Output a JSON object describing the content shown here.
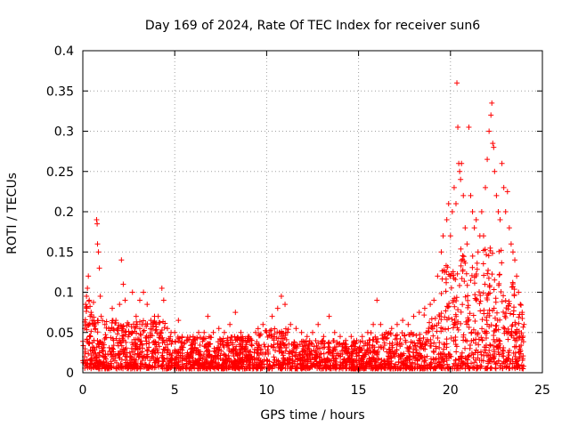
{
  "chart_data": {
    "type": "scatter",
    "title": "Day 169 of 2024, Rate Of TEC Index for receiver sun6",
    "xlabel": "GPS time / hours",
    "ylabel": "ROTI / TECUs",
    "xlim": [
      0,
      25
    ],
    "ylim": [
      0,
      0.4
    ],
    "xticks": [
      {
        "value": 0,
        "label": "0"
      },
      {
        "value": 5,
        "label": "5"
      },
      {
        "value": 10,
        "label": "10"
      },
      {
        "value": 15,
        "label": "15"
      },
      {
        "value": 20,
        "label": "20"
      },
      {
        "value": 25,
        "label": "25"
      }
    ],
    "yticks": [
      {
        "value": 0,
        "label": "0"
      },
      {
        "value": 0.05,
        "label": "0.05"
      },
      {
        "value": 0.1,
        "label": "0.1"
      },
      {
        "value": 0.15,
        "label": "0.15"
      },
      {
        "value": 0.2,
        "label": "0.2"
      },
      {
        "value": 0.25,
        "label": "0.25"
      },
      {
        "value": 0.3,
        "label": "0.3"
      },
      {
        "value": 0.35,
        "label": "0.35"
      },
      {
        "value": 0.4,
        "label": "0.4"
      }
    ],
    "grid": true,
    "marker": "plus",
    "color": "#ff0000",
    "series": [
      {
        "points": [
          [
            0.1,
            0.055
          ],
          [
            0.15,
            0.085
          ],
          [
            0.2,
            0.095
          ],
          [
            0.25,
            0.105
          ],
          [
            0.3,
            0.12
          ],
          [
            0.35,
            0.09
          ],
          [
            0.4,
            0.07
          ],
          [
            0.45,
            0.075
          ],
          [
            0.5,
            0.065
          ],
          [
            0.6,
            0.06
          ],
          [
            0.75,
            0.19
          ],
          [
            0.78,
            0.185
          ],
          [
            0.8,
            0.16
          ],
          [
            0.85,
            0.15
          ],
          [
            0.9,
            0.13
          ],
          [
            0.95,
            0.095
          ],
          [
            1.0,
            0.07
          ],
          [
            1.2,
            0.06
          ],
          [
            1.4,
            0.055
          ],
          [
            1.6,
            0.08
          ],
          [
            1.8,
            0.065
          ],
          [
            2.0,
            0.085
          ],
          [
            2.1,
            0.14
          ],
          [
            2.2,
            0.11
          ],
          [
            2.3,
            0.09
          ],
          [
            2.5,
            0.06
          ],
          [
            2.7,
            0.1
          ],
          [
            2.9,
            0.07
          ],
          [
            3.1,
            0.09
          ],
          [
            3.3,
            0.1
          ],
          [
            3.5,
            0.085
          ],
          [
            3.7,
            0.065
          ],
          [
            3.9,
            0.07
          ],
          [
            4.1,
            0.07
          ],
          [
            4.3,
            0.105
          ],
          [
            4.4,
            0.09
          ],
          [
            4.6,
            0.055
          ],
          [
            4.8,
            0.05
          ],
          [
            5.0,
            0.05
          ],
          [
            5.2,
            0.065
          ],
          [
            5.4,
            0.045
          ],
          [
            5.7,
            0.04
          ],
          [
            6.0,
            0.045
          ],
          [
            6.3,
            0.05
          ],
          [
            6.6,
            0.05
          ],
          [
            6.8,
            0.07
          ],
          [
            7.1,
            0.05
          ],
          [
            7.4,
            0.055
          ],
          [
            7.7,
            0.05
          ],
          [
            8.0,
            0.06
          ],
          [
            8.3,
            0.075
          ],
          [
            8.6,
            0.05
          ],
          [
            9.0,
            0.045
          ],
          [
            9.4,
            0.05
          ],
          [
            9.8,
            0.06
          ],
          [
            10.0,
            0.05
          ],
          [
            10.3,
            0.07
          ],
          [
            10.6,
            0.08
          ],
          [
            10.8,
            0.095
          ],
          [
            11.0,
            0.085
          ],
          [
            11.3,
            0.06
          ],
          [
            11.6,
            0.055
          ],
          [
            11.9,
            0.05
          ],
          [
            12.2,
            0.045
          ],
          [
            12.5,
            0.05
          ],
          [
            12.8,
            0.06
          ],
          [
            13.1,
            0.045
          ],
          [
            13.4,
            0.07
          ],
          [
            13.7,
            0.05
          ],
          [
            14.0,
            0.045
          ],
          [
            14.3,
            0.04
          ],
          [
            14.6,
            0.045
          ],
          [
            14.9,
            0.04
          ],
          [
            15.2,
            0.045
          ],
          [
            15.5,
            0.05
          ],
          [
            15.8,
            0.06
          ],
          [
            16.0,
            0.09
          ],
          [
            16.2,
            0.06
          ],
          [
            16.5,
            0.05
          ],
          [
            16.8,
            0.055
          ],
          [
            17.1,
            0.06
          ],
          [
            17.4,
            0.065
          ],
          [
            17.7,
            0.06
          ],
          [
            18.0,
            0.07
          ],
          [
            18.3,
            0.075
          ],
          [
            18.6,
            0.08
          ],
          [
            18.9,
            0.085
          ],
          [
            19.1,
            0.09
          ],
          [
            19.3,
            0.12
          ],
          [
            19.5,
            0.15
          ],
          [
            19.6,
            0.17
          ],
          [
            19.8,
            0.19
          ],
          [
            19.9,
            0.21
          ],
          [
            20.0,
            0.17
          ],
          [
            20.1,
            0.2
          ],
          [
            20.2,
            0.23
          ],
          [
            20.3,
            0.21
          ],
          [
            20.35,
            0.36
          ],
          [
            20.4,
            0.305
          ],
          [
            20.45,
            0.26
          ],
          [
            20.5,
            0.25
          ],
          [
            20.55,
            0.24
          ],
          [
            20.6,
            0.26
          ],
          [
            20.7,
            0.22
          ],
          [
            20.8,
            0.18
          ],
          [
            20.9,
            0.16
          ],
          [
            21.0,
            0.305
          ],
          [
            21.1,
            0.22
          ],
          [
            21.2,
            0.2
          ],
          [
            21.3,
            0.18
          ],
          [
            21.4,
            0.19
          ],
          [
            21.5,
            0.15
          ],
          [
            21.6,
            0.17
          ],
          [
            21.7,
            0.2
          ],
          [
            21.8,
            0.17
          ],
          [
            21.9,
            0.23
          ],
          [
            22.0,
            0.265
          ],
          [
            22.1,
            0.3
          ],
          [
            22.2,
            0.32
          ],
          [
            22.25,
            0.335
          ],
          [
            22.3,
            0.285
          ],
          [
            22.35,
            0.28
          ],
          [
            22.4,
            0.25
          ],
          [
            22.5,
            0.22
          ],
          [
            22.6,
            0.2
          ],
          [
            22.7,
            0.19
          ],
          [
            22.8,
            0.26
          ],
          [
            22.9,
            0.23
          ],
          [
            23.0,
            0.2
          ],
          [
            23.1,
            0.225
          ],
          [
            23.2,
            0.18
          ],
          [
            23.3,
            0.16
          ],
          [
            23.4,
            0.15
          ],
          [
            23.5,
            0.14
          ],
          [
            23.6,
            0.12
          ],
          [
            23.7,
            0.1
          ],
          [
            23.8,
            0.085
          ],
          [
            23.9,
            0.075
          ],
          [
            24.0,
            0.06
          ]
        ]
      }
    ]
  }
}
